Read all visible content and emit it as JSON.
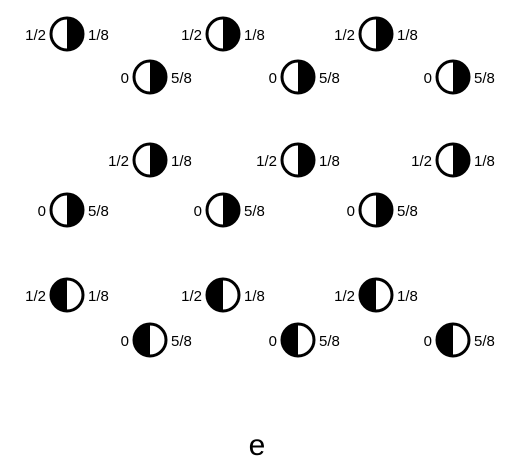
{
  "figure": {
    "panel_label": "e",
    "stroke_color": "#000000",
    "fill_color": "#000000",
    "background": "#ffffff",
    "rows": [
      {
        "pairs": [
          {
            "top": {
              "left_label": "1/2",
              "right_label": "1/8",
              "filled_half": "right"
            },
            "bottom": {
              "left_label": "0",
              "right_label": "5/8",
              "filled_half": "right"
            }
          },
          {
            "top": {
              "left_label": "1/2",
              "right_label": "1/8",
              "filled_half": "right"
            },
            "bottom": {
              "left_label": "0",
              "right_label": "5/8",
              "filled_half": "right"
            }
          },
          {
            "top": {
              "left_label": "1/2",
              "right_label": "1/8",
              "filled_half": "right"
            },
            "bottom": {
              "left_label": "0",
              "right_label": "5/8",
              "filled_half": "right"
            }
          }
        ]
      },
      {
        "pairs": [
          {
            "top": {
              "left_label": "1/2",
              "right_label": "1/8",
              "filled_half": "right"
            },
            "bottom": {
              "left_label": "0",
              "right_label": "5/8",
              "filled_half": "right"
            }
          },
          {
            "top": {
              "left_label": "1/2",
              "right_label": "1/8",
              "filled_half": "right"
            },
            "bottom": {
              "left_label": "0",
              "right_label": "5/8",
              "filled_half": "right"
            }
          },
          {
            "top": {
              "left_label": "1/2",
              "right_label": "1/8",
              "filled_half": "right"
            },
            "bottom": {
              "left_label": "0",
              "right_label": "5/8",
              "filled_half": "right"
            }
          }
        ]
      },
      {
        "pairs": [
          {
            "top": {
              "left_label": "1/2",
              "right_label": "1/8",
              "filled_half": "left"
            },
            "bottom": {
              "left_label": "0",
              "right_label": "5/8",
              "filled_half": "left"
            }
          },
          {
            "top": {
              "left_label": "1/2",
              "right_label": "1/8",
              "filled_half": "left"
            },
            "bottom": {
              "left_label": "0",
              "right_label": "5/8",
              "filled_half": "left"
            }
          },
          {
            "top": {
              "left_label": "1/2",
              "right_label": "1/8",
              "filled_half": "left"
            },
            "bottom": {
              "left_label": "0",
              "right_label": "5/8",
              "filled_half": "left"
            }
          }
        ]
      }
    ]
  }
}
